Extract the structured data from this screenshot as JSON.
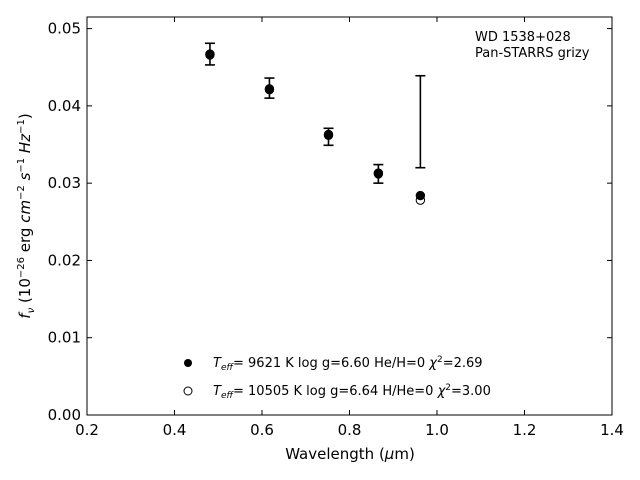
{
  "chart_data": {
    "type": "scatter",
    "xlabel": "Wavelength (μm)",
    "ylabel": "f_ν (10^-26 erg cm^-2 s^-1 Hz^-1)",
    "xlim": [
      0.2,
      1.4
    ],
    "ylim": [
      0.0,
      0.0515
    ],
    "xticks": [
      "0.2",
      "0.4",
      "0.6",
      "0.8",
      "1.0",
      "1.2",
      "1.4"
    ],
    "yticks": [
      "0.00",
      "0.01",
      "0.02",
      "0.03",
      "0.04",
      "0.05"
    ],
    "annotation": [
      "WD 1538+028",
      "Pan-STARRS grizy"
    ],
    "observed": {
      "x": [
        0.481,
        0.617,
        0.752,
        0.866,
        0.962
      ],
      "y_lo": [
        0.0453,
        0.041,
        0.0349,
        0.03,
        0.032
      ],
      "y_hi": [
        0.0481,
        0.0436,
        0.0371,
        0.0324,
        0.0439
      ]
    },
    "series": [
      {
        "marker": "filled-circle",
        "legend": "Teff=  9621 K  log g=6.60  He/H=0  χ²=2.69",
        "x": [
          0.481,
          0.617,
          0.752,
          0.866,
          0.962
        ],
        "y": [
          0.0467,
          0.0422,
          0.0363,
          0.0313,
          0.0284
        ]
      },
      {
        "marker": "open-circle",
        "legend": "Teff= 10505 K  log g=6.64  H/He=0  χ²=3.00",
        "x": [
          0.481,
          0.617,
          0.752,
          0.866,
          0.962
        ],
        "y": [
          0.0466,
          0.0421,
          0.0362,
          0.0312,
          0.0278
        ]
      }
    ],
    "legend_placement": "bottom-center",
    "grid": false
  }
}
